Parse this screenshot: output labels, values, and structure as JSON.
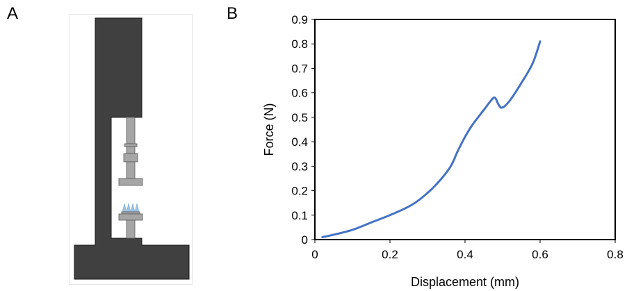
{
  "panels": {
    "a_label": "A",
    "b_label": "B"
  },
  "colors": {
    "frame": "#404040",
    "frame_stroke": "#1a1a1a",
    "fixture": "#a6a6a6",
    "fixture_stroke": "#595959",
    "needles": "#9dc3e6",
    "series": "#4472c4"
  },
  "chart_data": {
    "type": "line",
    "title": "",
    "xlabel": "Displacement (mm)",
    "ylabel": "Force (N)",
    "xlim": [
      0,
      0.8
    ],
    "ylim": [
      0,
      0.9
    ],
    "xticks": [
      0,
      0.2,
      0.4,
      0.6,
      0.8
    ],
    "xtick_labels": [
      "0",
      "0.2",
      "0.4",
      "0.6",
      "0.8"
    ],
    "yticks": [
      0,
      0.1,
      0.2,
      0.3,
      0.4,
      0.5,
      0.6,
      0.7,
      0.8,
      0.9
    ],
    "ytick_labels": [
      "0",
      "0.1",
      "0.2",
      "0.3",
      "0.4",
      "0.5",
      "0.6",
      "0.7",
      "0.8",
      "0.9"
    ],
    "grid": false,
    "legend": "none",
    "series": [
      {
        "x": [
          0.02,
          0.05,
          0.1,
          0.15,
          0.2,
          0.25,
          0.28,
          0.32,
          0.36,
          0.38,
          0.4,
          0.42,
          0.45,
          0.47,
          0.48,
          0.49,
          0.5,
          0.52,
          0.55,
          0.58,
          0.6
        ],
        "y": [
          0.01,
          0.02,
          0.04,
          0.07,
          0.1,
          0.135,
          0.165,
          0.22,
          0.295,
          0.36,
          0.42,
          0.47,
          0.53,
          0.57,
          0.58,
          0.55,
          0.54,
          0.57,
          0.64,
          0.72,
          0.81
        ]
      }
    ]
  }
}
